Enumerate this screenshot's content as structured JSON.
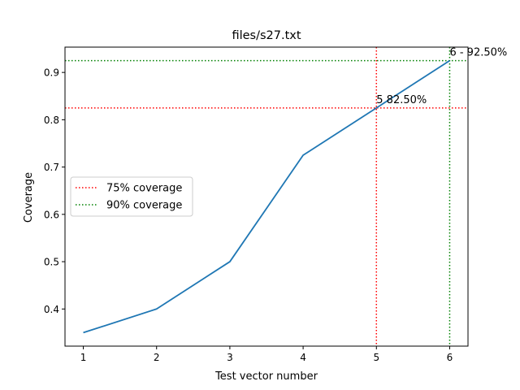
{
  "chart_data": {
    "type": "line",
    "title": "files/s27.txt",
    "xlabel": "Test vector number",
    "ylabel": "Coverage",
    "xlim": [
      0.75,
      6.25
    ],
    "ylim": [
      0.3215,
      0.9535
    ],
    "x_ticks": [
      "1",
      "2",
      "3",
      "4",
      "5",
      "6"
    ],
    "y_ticks": [
      "0.4",
      "0.5",
      "0.6",
      "0.7",
      "0.8",
      "0.9"
    ],
    "series": [
      {
        "color": "#1f77b4",
        "x": [
          1,
          2,
          3,
          4,
          5,
          6
        ],
        "y": [
          0.35,
          0.4,
          0.5,
          0.725,
          0.825,
          0.925
        ]
      }
    ],
    "reference_lines": [
      {
        "label": "75% coverage",
        "color": "#ff0000",
        "style": "dotted",
        "x": 5,
        "y": 0.825
      },
      {
        "label": "90% coverage",
        "color": "#008000",
        "style": "dotted",
        "x": 6,
        "y": 0.925
      }
    ],
    "annotations": [
      {
        "text": "5 82.50%",
        "x": 5,
        "y": 0.825
      },
      {
        "text": "6 - 92.50%",
        "x": 6,
        "y": 0.925
      }
    ],
    "legend": {
      "placement": "center-left",
      "entries": [
        "75% coverage",
        "90% coverage"
      ]
    },
    "grid": false
  }
}
